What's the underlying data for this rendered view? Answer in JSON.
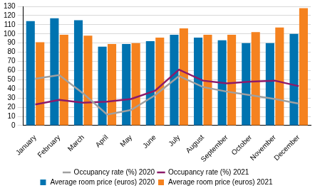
{
  "chart_data": {
    "type": "bar",
    "categories": [
      "January",
      "February",
      "March",
      "April",
      "May",
      "June",
      "July",
      "August",
      "September",
      "October",
      "November",
      "December"
    ],
    "series": [
      {
        "name": "Average room price (euros) 2020",
        "color": "#0073b0",
        "type": "bar",
        "values": [
          114,
          117,
          115,
          86,
          89,
          92,
          99,
          96,
          93,
          90,
          90,
          100
        ]
      },
      {
        "name": "Average room price (euros) 2021",
        "color": "#f5821f",
        "type": "bar",
        "values": [
          91,
          99,
          98,
          89,
          90,
          96,
          106,
          99,
          99,
          102,
          107,
          128
        ]
      },
      {
        "name": "Occupancy rate (%) 2020",
        "color": "#a0a0a0",
        "type": "line",
        "values": [
          51,
          55,
          35,
          12,
          17,
          33,
          54,
          42,
          37,
          33,
          29,
          24
        ]
      },
      {
        "name": "Occupancy rate (%) 2021",
        "color": "#8c1a6a",
        "type": "line",
        "values": [
          23,
          28,
          25,
          26,
          29,
          38,
          61,
          49,
          46,
          48,
          49,
          43
        ]
      }
    ],
    "ylim": [
      0,
      130
    ],
    "yticks": [
      0,
      10,
      20,
      30,
      40,
      50,
      60,
      70,
      80,
      90,
      100,
      110,
      120,
      130
    ],
    "grid": true,
    "legend": "bottom"
  }
}
